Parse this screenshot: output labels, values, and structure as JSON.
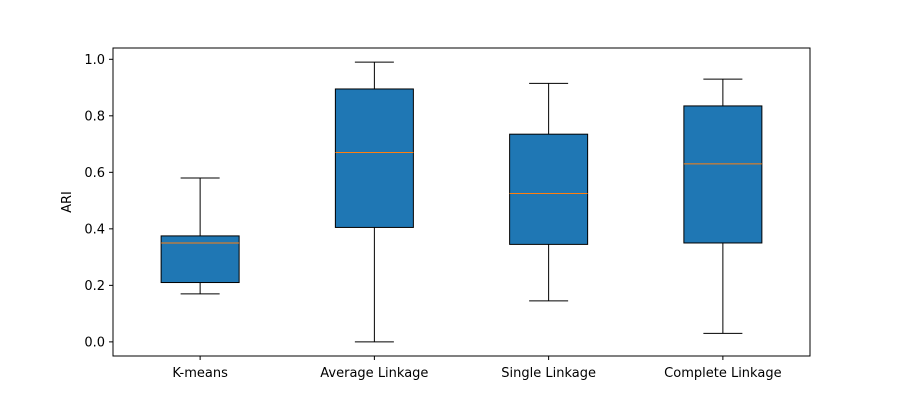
{
  "chart_data": {
    "type": "box",
    "title": "",
    "xlabel": "",
    "ylabel": "ARI",
    "ylim": [
      -0.05,
      1.04
    ],
    "yticks": [
      0.0,
      0.2,
      0.4,
      0.6,
      0.8,
      1.0
    ],
    "ytick_labels": [
      "0.0",
      "0.2",
      "0.4",
      "0.6",
      "0.8",
      "1.0"
    ],
    "categories": [
      "K-means",
      "Average Linkage",
      "Single Linkage",
      "Complete Linkage"
    ],
    "boxes": [
      {
        "category": "K-means",
        "whisker_low": 0.17,
        "q1": 0.21,
        "median": 0.35,
        "q3": 0.375,
        "whisker_high": 0.58
      },
      {
        "category": "Average Linkage",
        "whisker_low": 0.0,
        "q1": 0.405,
        "median": 0.67,
        "q3": 0.895,
        "whisker_high": 0.99
      },
      {
        "category": "Single Linkage",
        "whisker_low": 0.145,
        "q1": 0.345,
        "median": 0.525,
        "q3": 0.735,
        "whisker_high": 0.915
      },
      {
        "category": "Complete Linkage",
        "whisker_low": 0.03,
        "q1": 0.35,
        "median": 0.63,
        "q3": 0.835,
        "whisker_high": 0.93
      }
    ],
    "grid": false,
    "legend": "none",
    "colors": {
      "box_fill": "#1f77b4",
      "median": "#ff7f0e",
      "lines": "#000000",
      "background": "#ffffff"
    }
  }
}
